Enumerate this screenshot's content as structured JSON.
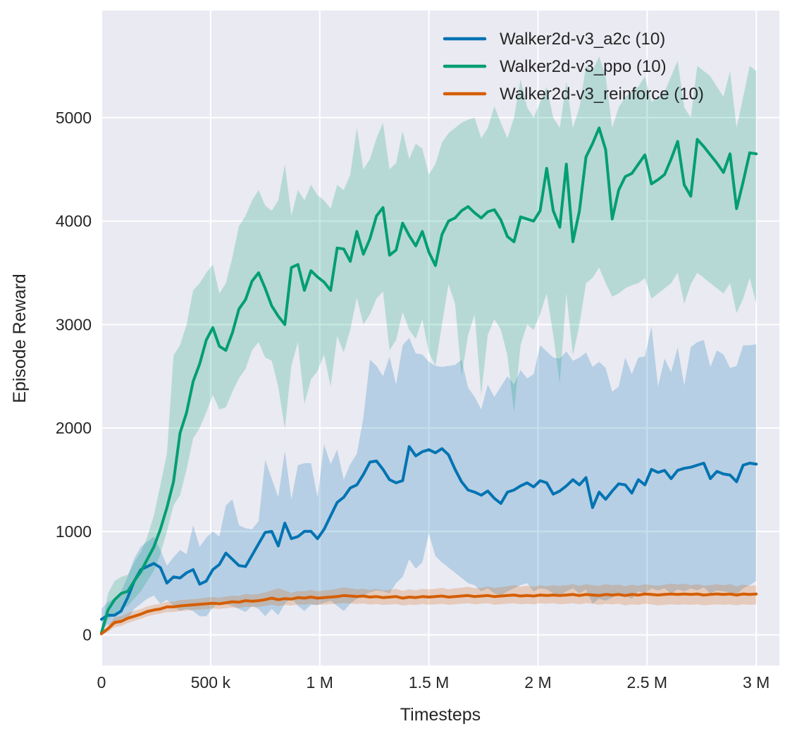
{
  "chart_data": {
    "type": "line",
    "title": "",
    "xlabel": "Timesteps",
    "ylabel": "Episode Reward",
    "xlim": [
      0,
      3106000
    ],
    "ylim": [
      -296,
      6035
    ],
    "grid": true,
    "plot_background": "#eaeaf2",
    "gridline_color": "#ffffff",
    "text_color": "#262626",
    "legend_position": "upper-right",
    "x_ticks": [
      {
        "value": 0,
        "label": "0"
      },
      {
        "value": 500000,
        "label": "500 k"
      },
      {
        "value": 1000000,
        "label": "1 M"
      },
      {
        "value": 1500000,
        "label": "1.5 M"
      },
      {
        "value": 2000000,
        "label": "2 M"
      },
      {
        "value": 2500000,
        "label": "2.5 M"
      },
      {
        "value": 3000000,
        "label": "3 M"
      }
    ],
    "y_ticks": [
      {
        "value": 0,
        "label": "0"
      },
      {
        "value": 1000,
        "label": "1000"
      },
      {
        "value": 2000,
        "label": "2000"
      },
      {
        "value": 3000,
        "label": "3000"
      },
      {
        "value": 4000,
        "label": "4000"
      },
      {
        "value": 5000,
        "label": "5000"
      }
    ],
    "x_start": 0,
    "x_step": 30000,
    "x_max": 3000000,
    "band_opacity": 0.22,
    "line_width": 4,
    "series": [
      {
        "name": "Walker2d-v3_a2c (10)",
        "id": "a2c",
        "color": "#0173b2",
        "mean": [
          150,
          190,
          190,
          230,
          360,
          520,
          630,
          660,
          690,
          650,
          500,
          560,
          550,
          600,
          630,
          490,
          520,
          630,
          680,
          790,
          730,
          670,
          660,
          770,
          880,
          990,
          1000,
          860,
          1080,
          930,
          950,
          1000,
          1000,
          930,
          1020,
          1150,
          1280,
          1330,
          1420,
          1450,
          1550,
          1670,
          1680,
          1600,
          1500,
          1470,
          1490,
          1820,
          1730,
          1770,
          1790,
          1760,
          1800,
          1740,
          1600,
          1480,
          1400,
          1380,
          1350,
          1390,
          1320,
          1270,
          1380,
          1400,
          1440,
          1470,
          1430,
          1490,
          1470,
          1360,
          1390,
          1440,
          1500,
          1450,
          1520,
          1230,
          1380,
          1310,
          1390,
          1460,
          1450,
          1370,
          1500,
          1450,
          1600,
          1570,
          1590,
          1510,
          1590,
          1610,
          1620,
          1640,
          1660,
          1510,
          1580,
          1555,
          1545,
          1480,
          1640,
          1660,
          1650
        ],
        "hi": [
          250,
          320,
          350,
          420,
          560,
          740,
          850,
          900,
          950,
          820,
          670,
          750,
          820,
          780,
          1060,
          850,
          940,
          1000,
          950,
          1250,
          1310,
          1060,
          1030,
          1020,
          1100,
          1690,
          1510,
          1330,
          1780,
          1310,
          1640,
          1660,
          1660,
          1330,
          1840,
          1650,
          1790,
          1500,
          1650,
          1750,
          2100,
          2660,
          2600,
          2500,
          2690,
          2420,
          2800,
          2870,
          2720,
          2710,
          2640,
          2600,
          2590,
          2600,
          2610,
          2660,
          2390,
          2300,
          2180,
          2420,
          2300,
          2400,
          2500,
          2420,
          2560,
          2480,
          2520,
          2800,
          2740,
          2680,
          2670,
          2740,
          2650,
          2680,
          2730,
          2590,
          2640,
          2580,
          2350,
          2400,
          2680,
          2520,
          2680,
          2690,
          2980,
          2400,
          2670,
          2540,
          2780,
          2410,
          2780,
          2830,
          2850,
          2590,
          2750,
          2710,
          2580,
          2600,
          2800,
          2800,
          2810
        ],
        "lo": [
          50,
          100,
          100,
          120,
          150,
          250,
          300,
          350,
          380,
          300,
          340,
          280,
          230,
          250,
          230,
          180,
          180,
          260,
          320,
          300,
          280,
          250,
          220,
          280,
          250,
          180,
          250,
          190,
          300,
          360,
          280,
          230,
          290,
          290,
          310,
          330,
          280,
          230,
          300,
          350,
          380,
          410,
          430,
          420,
          400,
          500,
          560,
          730,
          640,
          700,
          980,
          760,
          700,
          650,
          600,
          550,
          500,
          480,
          420,
          450,
          400,
          380,
          420,
          450,
          480,
          500,
          420,
          450,
          440,
          400,
          380,
          420,
          450,
          400,
          440,
          300,
          350,
          330,
          360,
          400,
          380,
          350,
          420,
          400,
          450,
          430,
          450,
          400,
          440,
          420,
          450,
          430,
          460,
          400,
          430,
          420,
          410,
          390,
          450,
          480,
          520
        ]
      },
      {
        "name": "Walker2d-v3_ppo (10)",
        "id": "ppo",
        "color": "#029e73",
        "mean": [
          20,
          240,
          340,
          400,
          420,
          520,
          610,
          730,
          850,
          1020,
          1230,
          1480,
          1950,
          2150,
          2450,
          2620,
          2850,
          2970,
          2790,
          2750,
          2920,
          3150,
          3240,
          3420,
          3500,
          3350,
          3180,
          3080,
          3000,
          3550,
          3580,
          3330,
          3520,
          3460,
          3410,
          3330,
          3740,
          3730,
          3610,
          3900,
          3680,
          3830,
          4050,
          4130,
          3670,
          3720,
          3980,
          3860,
          3760,
          3900,
          3700,
          3570,
          3870,
          4000,
          4030,
          4100,
          4140,
          4080,
          4030,
          4090,
          4110,
          4010,
          3850,
          3800,
          4040,
          4020,
          4000,
          4100,
          4510,
          4100,
          3940,
          4550,
          3800,
          4100,
          4620,
          4750,
          4900,
          4690,
          4020,
          4300,
          4430,
          4460,
          4550,
          4640,
          4360,
          4400,
          4450,
          4600,
          4770,
          4350,
          4240,
          4790,
          4720,
          4640,
          4560,
          4470,
          4650,
          4120,
          4380,
          4660,
          4650
        ],
        "hi": [
          50,
          400,
          520,
          560,
          580,
          700,
          800,
          950,
          1150,
          1450,
          1750,
          2700,
          2800,
          3000,
          3330,
          3400,
          3500,
          3580,
          3300,
          3400,
          3650,
          3950,
          4050,
          4200,
          4300,
          4150,
          4100,
          4200,
          4550,
          4050,
          4300,
          4200,
          4350,
          4250,
          4200,
          4120,
          4350,
          4300,
          4450,
          4900,
          4500,
          4600,
          4800,
          4950,
          4500,
          4560,
          4870,
          4600,
          4750,
          4700,
          4450,
          4550,
          4760,
          4850,
          4900,
          4950,
          4980,
          5000,
          4800,
          4900,
          5110,
          4950,
          4800,
          5000,
          5370,
          5100,
          5000,
          5150,
          5300,
          5000,
          4900,
          5350,
          4900,
          5100,
          5500,
          5450,
          5590,
          5400,
          4900,
          5100,
          5200,
          5250,
          5300,
          5400,
          5150,
          5200,
          5250,
          5400,
          5550,
          5100,
          5000,
          5500,
          5450,
          5400,
          5300,
          5200,
          5450,
          4900,
          5200,
          5500,
          5450
        ],
        "lo": [
          0,
          150,
          200,
          250,
          280,
          350,
          420,
          520,
          620,
          780,
          1000,
          1250,
          1350,
          1600,
          1900,
          2000,
          2150,
          2320,
          2180,
          2200,
          2350,
          2480,
          2570,
          2750,
          2830,
          2680,
          2650,
          2400,
          1990,
          2600,
          2830,
          2230,
          2470,
          2550,
          2710,
          2400,
          2890,
          2730,
          2950,
          3260,
          3000,
          3100,
          3250,
          3320,
          2750,
          2850,
          3120,
          2950,
          2860,
          3050,
          2730,
          2600,
          3000,
          3390,
          3200,
          2500,
          2900,
          3100,
          2320,
          2900,
          3050,
          2950,
          2700,
          2150,
          2800,
          3000,
          2950,
          3100,
          3300,
          2900,
          2430,
          3300,
          2700,
          3000,
          3400,
          3450,
          3550,
          3400,
          3270,
          3300,
          3350,
          3380,
          3400,
          3450,
          3250,
          3300,
          3350,
          3400,
          3500,
          3200,
          3390,
          3500,
          3450,
          3400,
          3350,
          3300,
          3400,
          3110,
          3250,
          3450,
          3200
        ]
      },
      {
        "name": "Walker2d-v3_reinforce (10)",
        "id": "reinforce",
        "color": "#d55e00",
        "mean": [
          10,
          60,
          120,
          130,
          160,
          180,
          200,
          225,
          240,
          250,
          270,
          270,
          280,
          285,
          290,
          295,
          300,
          305,
          300,
          310,
          320,
          315,
          330,
          325,
          330,
          340,
          355,
          340,
          350,
          345,
          360,
          355,
          365,
          355,
          360,
          365,
          370,
          380,
          375,
          370,
          375,
          365,
          370,
          360,
          365,
          370,
          355,
          365,
          360,
          370,
          365,
          370,
          375,
          365,
          370,
          375,
          380,
          370,
          375,
          380,
          370,
          375,
          380,
          385,
          375,
          380,
          375,
          385,
          380,
          385,
          380,
          385,
          390,
          380,
          390,
          385,
          380,
          390,
          385,
          390,
          380,
          390,
          385,
          395,
          390,
          385,
          390,
          395,
          390,
          395,
          390,
          395,
          385,
          390,
          395,
          390,
          395,
          385,
          395,
          390,
          395
        ],
        "hi": [
          30,
          90,
          170,
          180,
          210,
          230,
          250,
          275,
          290,
          300,
          320,
          320,
          335,
          340,
          345,
          350,
          360,
          365,
          360,
          370,
          380,
          375,
          395,
          390,
          395,
          410,
          430,
          450,
          430,
          405,
          425,
          420,
          435,
          420,
          430,
          435,
          445,
          460,
          450,
          440,
          445,
          435,
          445,
          430,
          435,
          445,
          425,
          440,
          430,
          445,
          440,
          445,
          455,
          440,
          450,
          455,
          465,
          450,
          455,
          465,
          455,
          460,
          470,
          480,
          465,
          475,
          465,
          480,
          470,
          480,
          475,
          480,
          490,
          475,
          490,
          480,
          475,
          490,
          480,
          485,
          470,
          485,
          475,
          490,
          480,
          475,
          485,
          495,
          485,
          495,
          480,
          490,
          475,
          480,
          490,
          480,
          490,
          470,
          485,
          475,
          480
        ],
        "lo": [
          0,
          30,
          75,
          85,
          115,
          135,
          155,
          180,
          195,
          205,
          220,
          220,
          230,
          235,
          240,
          245,
          250,
          255,
          250,
          258,
          265,
          260,
          272,
          268,
          272,
          280,
          292,
          278,
          288,
          283,
          295,
          290,
          298,
          288,
          293,
          297,
          300,
          308,
          303,
          298,
          303,
          293,
          298,
          288,
          293,
          298,
          283,
          293,
          288,
          298,
          290,
          295,
          300,
          290,
          295,
          300,
          305,
          295,
          300,
          305,
          290,
          295,
          300,
          305,
          295,
          300,
          295,
          305,
          300,
          305,
          295,
          300,
          305,
          295,
          305,
          300,
          290,
          300,
          295,
          300,
          285,
          295,
          290,
          300,
          295,
          285,
          290,
          295,
          290,
          295,
          290,
          295,
          285,
          290,
          295,
          290,
          295,
          285,
          295,
          290,
          295
        ]
      }
    ]
  }
}
